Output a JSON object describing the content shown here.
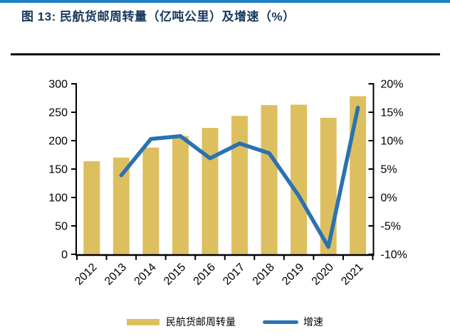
{
  "header": {
    "title": "图 13: 民航货邮周转量（亿吨公里）及增速（%）"
  },
  "colors": {
    "accent_bar": "#2080c4",
    "title_text": "#17375e",
    "bar_fill": "#ddbf5f",
    "line_stroke": "#2a72b0",
    "axis": "#000000"
  },
  "chart_data": {
    "type": "bar",
    "title": "民航货邮周转量（亿吨公里）及增速（%）",
    "categories": [
      "2012",
      "2013",
      "2014",
      "2015",
      "2016",
      "2017",
      "2018",
      "2019",
      "2020",
      "2021"
    ],
    "series": [
      {
        "name": "民航货邮周转量",
        "type": "bar",
        "axis": "left",
        "values": [
          163.9,
          170.3,
          187.8,
          208.1,
          222.5,
          243.5,
          262.5,
          263.2,
          240.2,
          278.2
        ]
      },
      {
        "name": "增速",
        "type": "line",
        "axis": "right",
        "values": [
          null,
          3.9,
          10.3,
          10.8,
          6.9,
          9.5,
          7.8,
          0.3,
          -8.7,
          15.8
        ]
      }
    ],
    "left_axis": {
      "min": 0,
      "max": 300,
      "tick_labels": [
        "0",
        "50",
        "100",
        "150",
        "200",
        "250",
        "300"
      ]
    },
    "right_axis": {
      "min": -10,
      "max": 20,
      "tick_labels": [
        "-10%",
        "-5%",
        "0%",
        "5%",
        "10%",
        "15%",
        "20%"
      ]
    },
    "grid": false,
    "legend_position": "bottom"
  }
}
